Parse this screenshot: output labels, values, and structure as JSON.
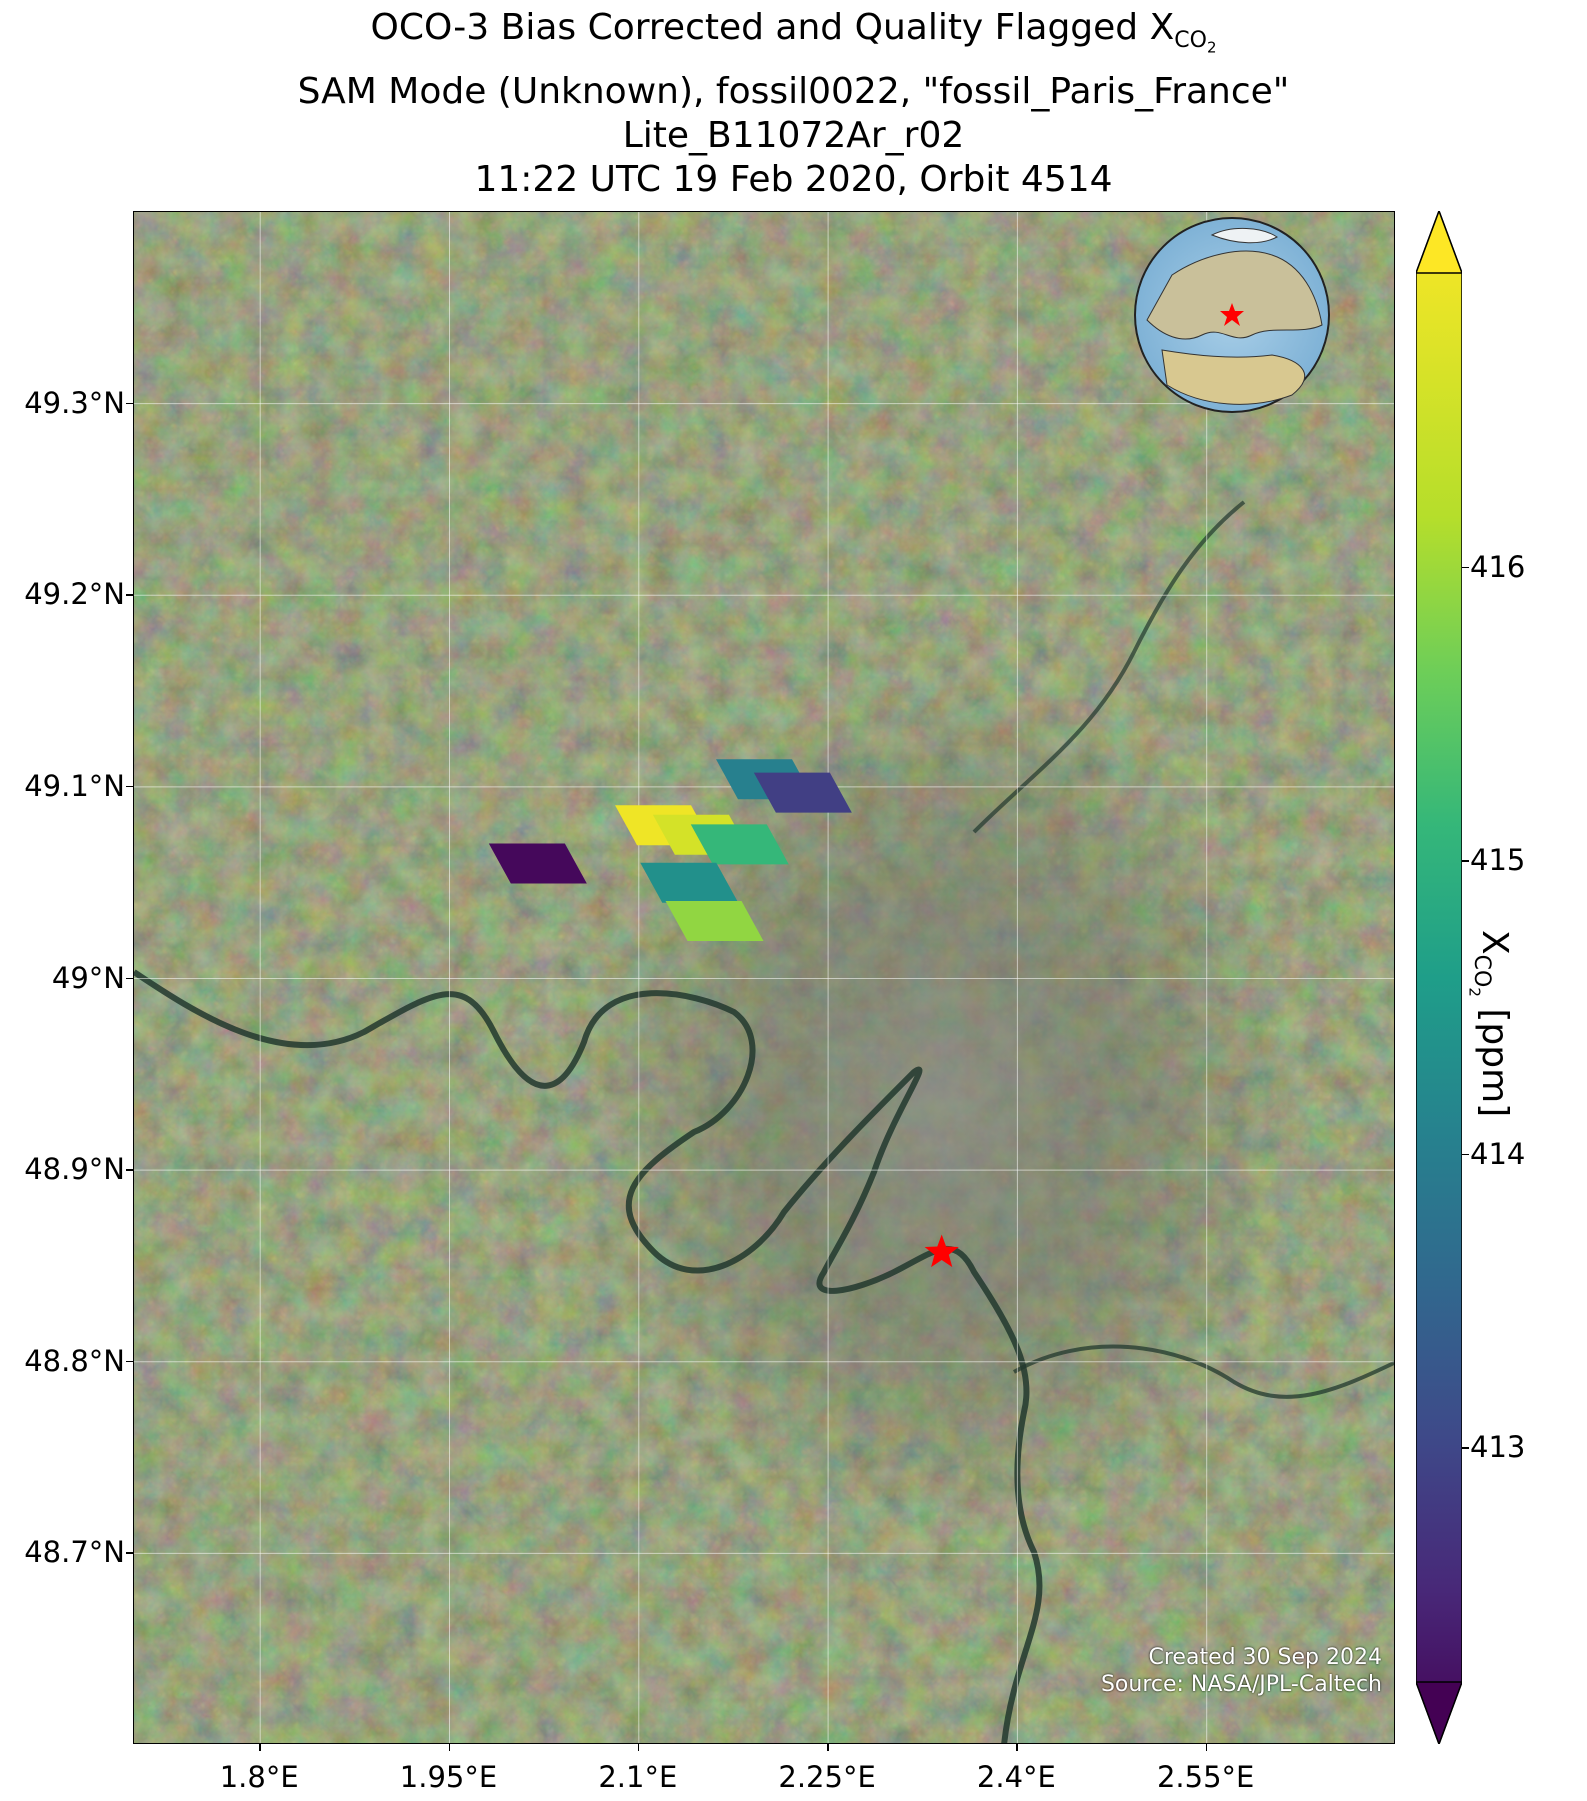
{
  "title": {
    "line1_prefix": "OCO-3 Bias Corrected and Quality Flagged X",
    "line1_sub": "CO",
    "line1_subsub": "2",
    "line2": "SAM Mode (Unknown), fossil0022, \"fossil_Paris_France\"",
    "line3": "Lite_B11072Ar_r02",
    "line4": "11:22 UTC 19 Feb 2020, Orbit 4514"
  },
  "map": {
    "lon_range": [
      1.7,
      2.7
    ],
    "lat_range": [
      48.6,
      49.4
    ],
    "lon_ticks": [
      {
        "value": 1.8,
        "label": "1.8°E"
      },
      {
        "value": 1.95,
        "label": "1.95°E"
      },
      {
        "value": 2.1,
        "label": "2.1°E"
      },
      {
        "value": 2.25,
        "label": "2.25°E"
      },
      {
        "value": 2.4,
        "label": "2.4°E"
      },
      {
        "value": 2.55,
        "label": "2.55°E"
      }
    ],
    "lat_ticks": [
      {
        "value": 49.3,
        "label": "49.3°N"
      },
      {
        "value": 49.2,
        "label": "49.2°N"
      },
      {
        "value": 49.1,
        "label": "49.1°N"
      },
      {
        "value": 49.0,
        "label": "49°N"
      },
      {
        "value": 48.9,
        "label": "48.9°N"
      },
      {
        "value": 48.8,
        "label": "48.8°N"
      },
      {
        "value": 48.7,
        "label": "48.7°N"
      }
    ],
    "grid": true,
    "target": {
      "name": "fossil_Paris_France",
      "lon": 2.34,
      "lat": 48.857,
      "marker": "star",
      "color": "#ff0000"
    },
    "soundings": [
      {
        "lon": 2.02,
        "lat": 49.06,
        "xco2": 412.3
      },
      {
        "lon": 2.12,
        "lat": 49.08,
        "xco2": 416.9
      },
      {
        "lon": 2.15,
        "lat": 49.075,
        "xco2": 416.7
      },
      {
        "lon": 2.18,
        "lat": 49.07,
        "xco2": 415.4
      },
      {
        "lon": 2.14,
        "lat": 49.05,
        "xco2": 414.6
      },
      {
        "lon": 2.16,
        "lat": 49.03,
        "xco2": 416.2
      },
      {
        "lon": 2.2,
        "lat": 49.104,
        "xco2": 414.3
      },
      {
        "lon": 2.23,
        "lat": 49.097,
        "xco2": 413.1
      }
    ],
    "inset_globe": {
      "center_lon": 2.35,
      "center_lat": 48.86,
      "marker": "star"
    }
  },
  "credit": {
    "line1": "Created 30 Sep 2024",
    "line2": "Source: NASA/JPL-Caltech"
  },
  "colorbar": {
    "colormap": "viridis",
    "vmin": 412.2,
    "vmax": 417.0,
    "extend": "both",
    "ticks": [
      413,
      414,
      415,
      416
    ],
    "label_prefix": "X",
    "label_sub": "CO",
    "label_subsub": "2",
    "label_suffix": " [ppm]"
  }
}
